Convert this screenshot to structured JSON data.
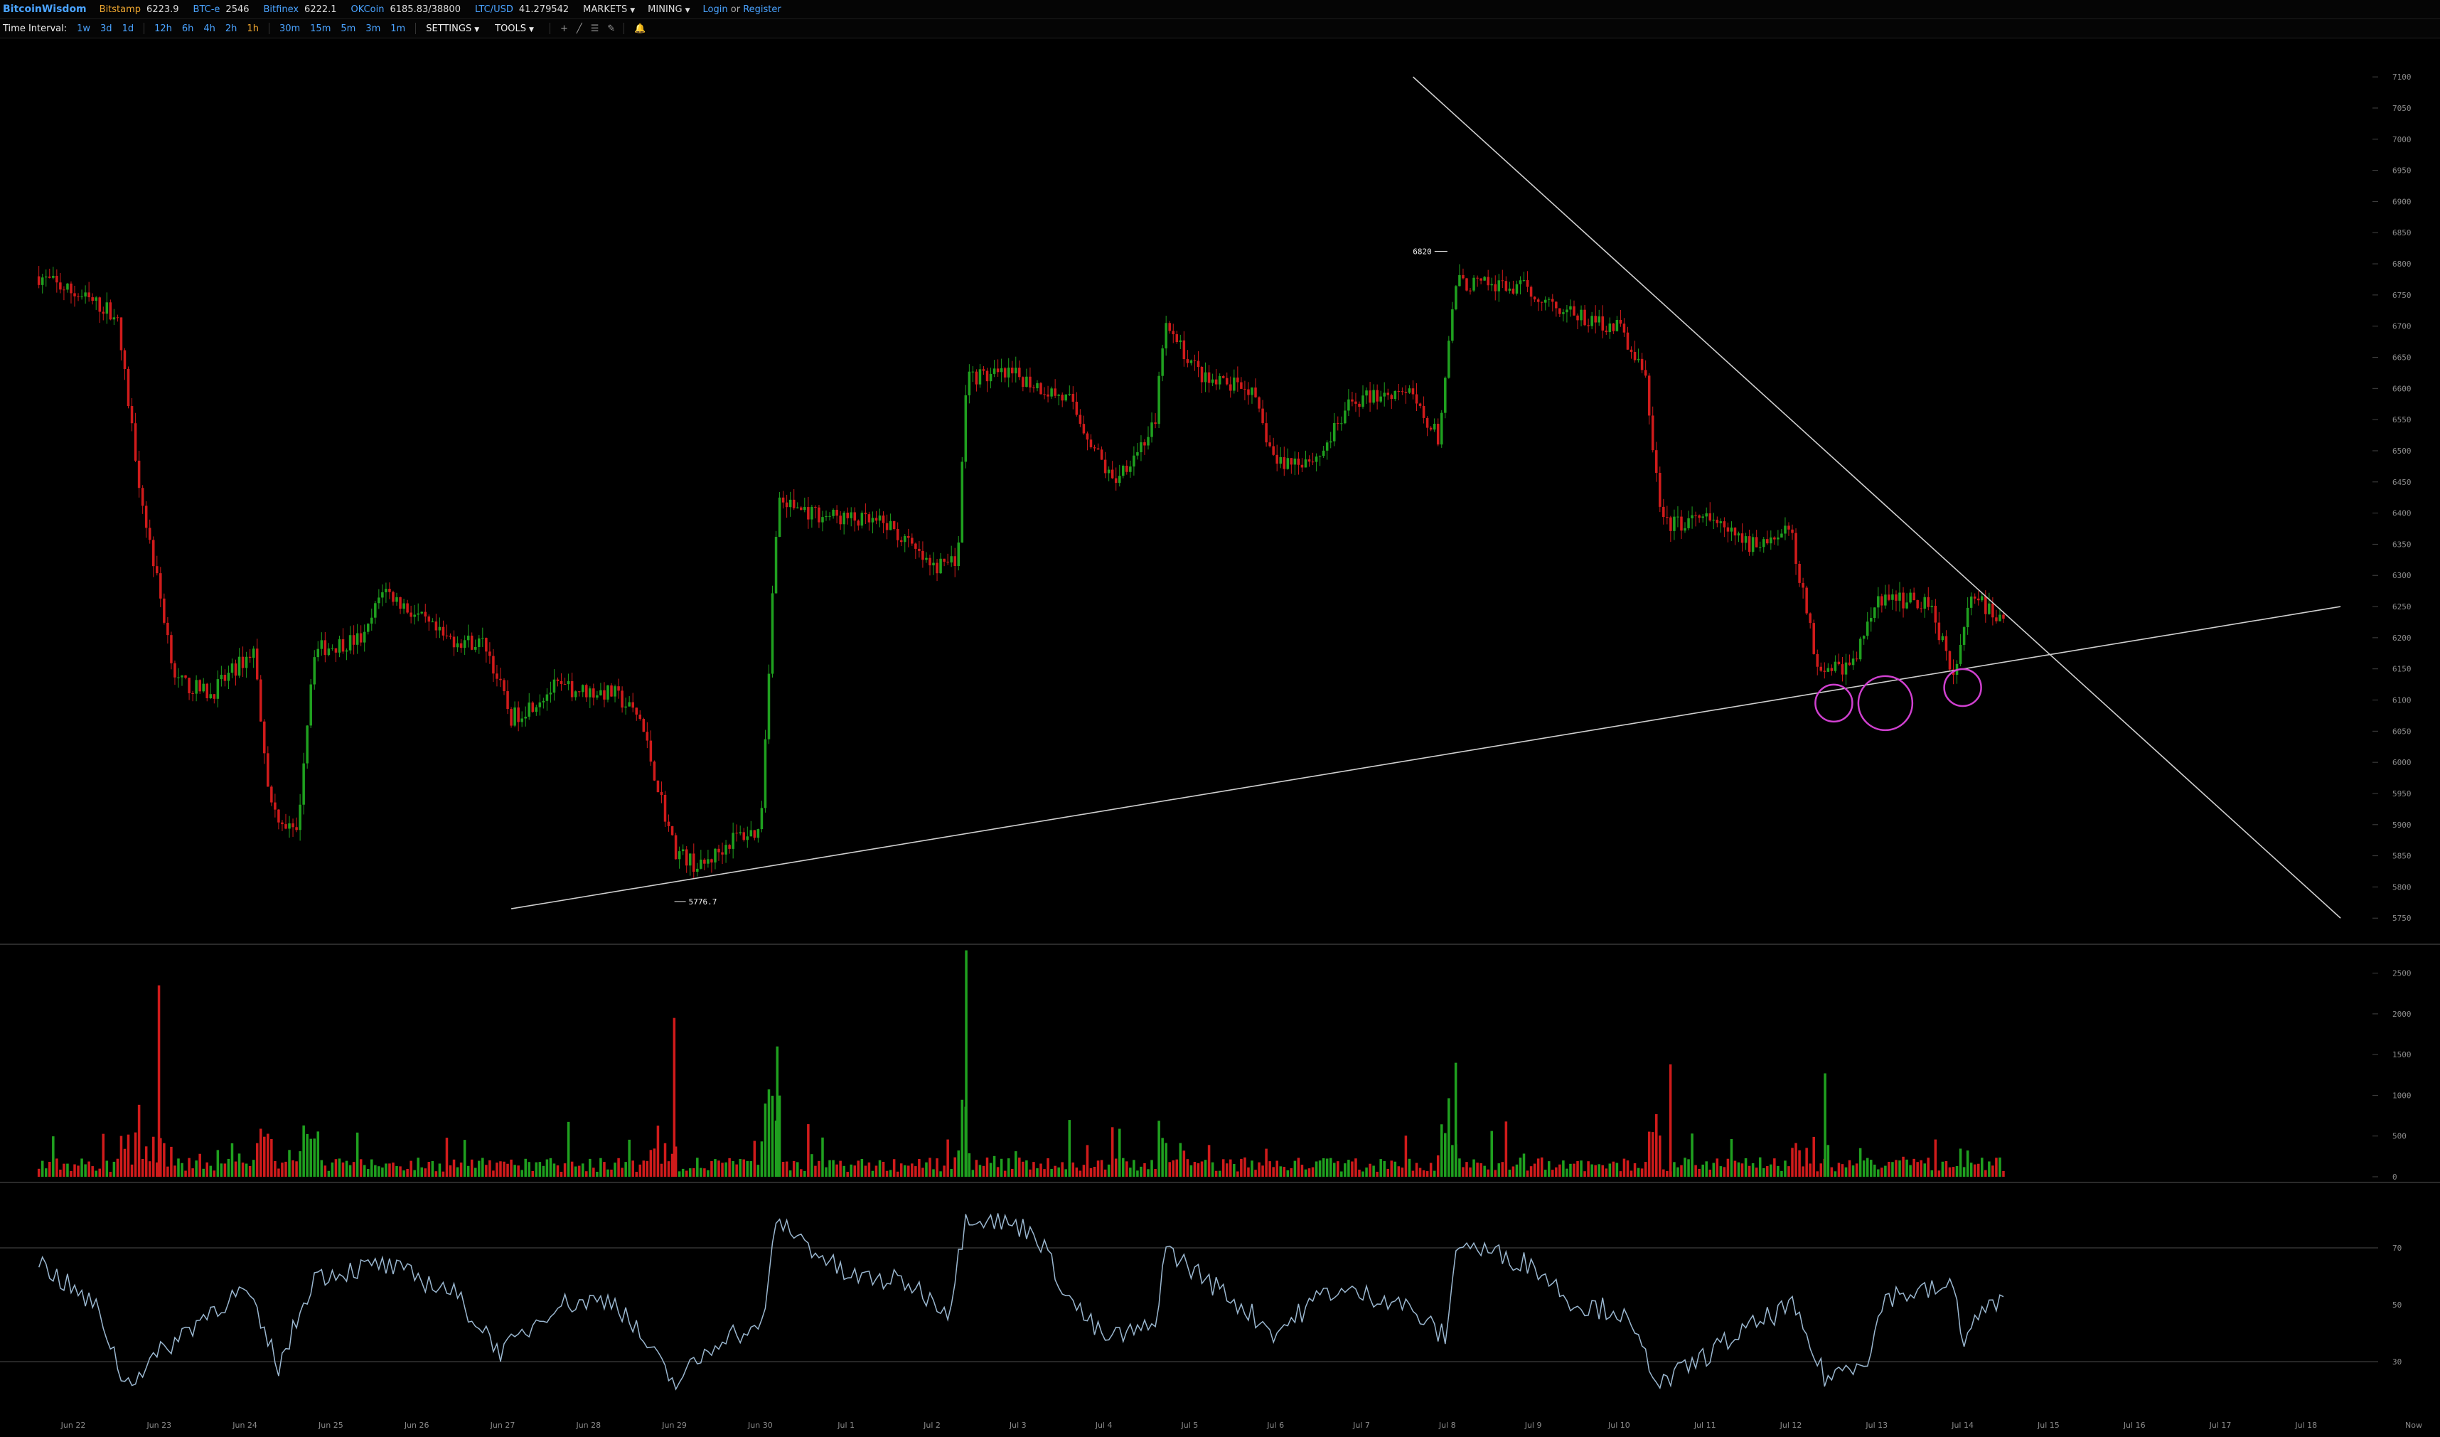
{
  "topbar": {
    "brand": "BitcoinWisdom",
    "exchanges": [
      {
        "name": "Bitstamp",
        "value": "6223.9",
        "color": "#f0a830"
      },
      {
        "name": "BTC-e",
        "value": "2546",
        "color": "#4aa3ff"
      },
      {
        "name": "Bitfinex",
        "value": "6222.1",
        "color": "#4aa3ff"
      },
      {
        "name": "OKCoin",
        "value": "6185.83/38800",
        "color": "#4aa3ff"
      },
      {
        "name": "LTC/USD",
        "value": "41.279542",
        "color": "#4aa3ff"
      }
    ],
    "menus": [
      "MARKETS",
      "MINING"
    ],
    "login": "Login",
    "or": "or",
    "register": "Register"
  },
  "toolbar": {
    "label": "Time Interval:",
    "intervals": [
      "1w",
      "3d",
      "1d",
      "12h",
      "6h",
      "4h",
      "2h",
      "1h",
      "30m",
      "15m",
      "5m",
      "3m",
      "1m"
    ],
    "active_interval": "1h",
    "settings": "SETTINGS",
    "tools": "TOOLS",
    "tool_icons": [
      "crosshair-icon",
      "trendline-icon",
      "horizontal-lines-icon",
      "pen-icon",
      "alarm-icon"
    ]
  },
  "colors": {
    "up": "#1fa01f",
    "down": "#d01b1b",
    "trendline": "#cfcfcf",
    "highlight_circle": "#d040d0",
    "rsi_line": "#9ab7d0",
    "axis_text": "#8a8a8a"
  },
  "chart_data": [
    {
      "type": "candlestick",
      "title": "",
      "price_axis_ticks": [
        5750,
        5800,
        5850,
        5900,
        5950,
        6000,
        6050,
        6100,
        6150,
        6200,
        6250,
        6300,
        6350,
        6400,
        6450,
        6500,
        6550,
        6600,
        6650,
        6700,
        6750,
        6800,
        6850,
        6900,
        6950,
        7000,
        7050,
        7100
      ],
      "ylim": [
        5740,
        7115
      ],
      "date_labels": [
        "Jun 22",
        "Jun 23",
        "Jun 24",
        "Jun 25",
        "Jun 26",
        "Jun 27",
        "Jun 28",
        "Jun 29",
        "Jun 30",
        "Jul 1",
        "Jul 2",
        "Jul 3",
        "Jul 4",
        "Jul 5",
        "Jul 6",
        "Jul 7",
        "Jul 8",
        "Jul 9",
        "Jul 10",
        "Jul 11",
        "Jul 12",
        "Jul 13",
        "Jul 14",
        "Jul 15",
        "Jul 16",
        "Jul 17",
        "Jul 18"
      ],
      "right_corner_label": "Now",
      "high_marker": {
        "label": "6820",
        "date": "Jul 8",
        "price": 6820
      },
      "low_marker": {
        "label": "5776.7",
        "date": "Jun 29",
        "price": 5776.7
      },
      "close_path": [
        {
          "date": "Jun 21.6",
          "close": 6780
        },
        {
          "date": "Jun 22.5",
          "close": 6720
        },
        {
          "date": "Jun 22.8",
          "close": 6420
        },
        {
          "date": "Jun 23.2",
          "close": 6130
        },
        {
          "date": "Jun 23.6",
          "close": 6110
        },
        {
          "date": "Jun 24.1",
          "close": 6180
        },
        {
          "date": "Jun 24.3",
          "close": 5930
        },
        {
          "date": "Jun 24.6",
          "close": 5880
        },
        {
          "date": "Jun 24.8",
          "close": 6180
        },
        {
          "date": "Jun 25.4",
          "close": 6200
        },
        {
          "date": "Jun 25.6",
          "close": 6280
        },
        {
          "date": "Jun 26.3",
          "close": 6200
        },
        {
          "date": "Jun 26.8",
          "close": 6190
        },
        {
          "date": "Jun 27.1",
          "close": 6070
        },
        {
          "date": "Jun 27.6",
          "close": 6120
        },
        {
          "date": "Jun 28.3",
          "close": 6110
        },
        {
          "date": "Jun 28.6",
          "close": 6070
        },
        {
          "date": "Jun 29.0",
          "close": 5860
        },
        {
          "date": "Jun 29.3",
          "close": 5830
        },
        {
          "date": "Jun 29.7",
          "close": 5880
        },
        {
          "date": "Jun 30.0",
          "close": 5890
        },
        {
          "date": "Jun 30.2",
          "close": 6420
        },
        {
          "date": "Jun 30.6",
          "close": 6400
        },
        {
          "date": "Jul 1.5",
          "close": 6380
        },
        {
          "date": "Jul 2.0",
          "close": 6310
        },
        {
          "date": "Jul 2.3",
          "close": 6330
        },
        {
          "date": "Jul 2.4",
          "close": 6620
        },
        {
          "date": "Jul 3.0",
          "close": 6620
        },
        {
          "date": "Jul 3.6",
          "close": 6580
        },
        {
          "date": "Jul 4.1",
          "close": 6450
        },
        {
          "date": "Jul 4.6",
          "close": 6540
        },
        {
          "date": "Jul 4.7",
          "close": 6700
        },
        {
          "date": "Jul 5.2",
          "close": 6610
        },
        {
          "date": "Jul 5.7",
          "close": 6600
        },
        {
          "date": "Jul 6.0",
          "close": 6480
        },
        {
          "date": "Jul 6.5",
          "close": 6490
        },
        {
          "date": "Jul 6.9",
          "close": 6580
        },
        {
          "date": "Jul 7.5",
          "close": 6600
        },
        {
          "date": "Jul 7.9",
          "close": 6520
        },
        {
          "date": "Jul 8.1",
          "close": 6770
        },
        {
          "date": "Jul 8.9",
          "close": 6760
        },
        {
          "date": "Jul 9.6",
          "close": 6710
        },
        {
          "date": "Jul 10.0",
          "close": 6700
        },
        {
          "date": "Jul 10.3",
          "close": 6620
        },
        {
          "date": "Jul 10.5",
          "close": 6380
        },
        {
          "date": "Jul 11.0",
          "close": 6390
        },
        {
          "date": "Jul 11.5",
          "close": 6350
        },
        {
          "date": "Jul 12.0",
          "close": 6370
        },
        {
          "date": "Jul 12.3",
          "close": 6160
        },
        {
          "date": "Jul 12.7",
          "close": 6150
        },
        {
          "date": "Jul 13.0",
          "close": 6260
        },
        {
          "date": "Jul 13.6",
          "close": 6260
        },
        {
          "date": "Jul 13.9",
          "close": 6140
        },
        {
          "date": "Jul 14.1",
          "close": 6270
        },
        {
          "date": "Jul 14.5",
          "close": 6220
        }
      ],
      "trendlines": [
        {
          "name": "descending resistance",
          "from": {
            "date": "Jul 7.6",
            "price": 7100
          },
          "to": {
            "date": "Jul 18.4",
            "price": 5750
          }
        },
        {
          "name": "ascending support",
          "from": {
            "date": "Jun 27.1",
            "price": 5765
          },
          "to": {
            "date": "Jul 18.4",
            "price": 6250
          }
        }
      ],
      "highlight_circles": [
        {
          "date": "Jul 12.5",
          "price": 6095
        },
        {
          "date": "Jul 13.1",
          "price": 6095
        },
        {
          "date": "Jul 14.0",
          "price": 6120
        }
      ]
    },
    {
      "type": "bar",
      "title": "",
      "volume_axis_ticks": [
        0,
        500,
        1000,
        1500,
        2000,
        2500
      ],
      "ylim": [
        0,
        2750
      ],
      "peak_volumes": [
        {
          "date": "Jun 23.0",
          "value": 2350
        },
        {
          "date": "Jun 29.0",
          "value": 1950
        },
        {
          "date": "Jun 30.2",
          "value": 1600
        },
        {
          "date": "Jul 2.4",
          "value": 2780
        },
        {
          "date": "Jul 8.1",
          "value": 1400
        },
        {
          "date": "Jul 10.6",
          "value": 1380
        },
        {
          "date": "Jul 12.4",
          "value": 1270
        }
      ]
    },
    {
      "type": "line",
      "title": "",
      "rsi_axis_ticks": [
        30,
        50,
        70
      ],
      "ylim": [
        10,
        90
      ],
      "path": [
        {
          "date": "Jun 21.6",
          "value": 65
        },
        {
          "date": "Jun 22.3",
          "value": 48
        },
        {
          "date": "Jun 22.6",
          "value": 22
        },
        {
          "date": "Jun 23.2",
          "value": 38
        },
        {
          "date": "Jun 23.6",
          "value": 48
        },
        {
          "date": "Jun 24.0",
          "value": 55
        },
        {
          "date": "Jun 24.4",
          "value": 28
        },
        {
          "date": "Jun 24.8",
          "value": 60
        },
        {
          "date": "Jun 25.6",
          "value": 64
        },
        {
          "date": "Jun 26.4",
          "value": 55
        },
        {
          "date": "Jun 27.0",
          "value": 33
        },
        {
          "date": "Jun 27.6",
          "value": 50
        },
        {
          "date": "Jun 28.3",
          "value": 52
        },
        {
          "date": "Jun 29.0",
          "value": 22
        },
        {
          "date": "Jun 29.6",
          "value": 40
        },
        {
          "date": "Jun 30.0",
          "value": 40
        },
        {
          "date": "Jun 30.2",
          "value": 80
        },
        {
          "date": "Jul 1.0",
          "value": 60
        },
        {
          "date": "Jul 1.7",
          "value": 58
        },
        {
          "date": "Jul 2.2",
          "value": 48
        },
        {
          "date": "Jul 2.4",
          "value": 82
        },
        {
          "date": "Jul 3.2",
          "value": 76
        },
        {
          "date": "Jul 3.6",
          "value": 52
        },
        {
          "date": "Jul 4.0",
          "value": 38
        },
        {
          "date": "Jul 4.6",
          "value": 42
        },
        {
          "date": "Jul 4.7",
          "value": 70
        },
        {
          "date": "Jul 5.5",
          "value": 52
        },
        {
          "date": "Jul 6.0",
          "value": 40
        },
        {
          "date": "Jul 6.6",
          "value": 55
        },
        {
          "date": "Jul 7.4",
          "value": 52
        },
        {
          "date": "Jul 8.0",
          "value": 38
        },
        {
          "date": "Jul 8.1",
          "value": 72
        },
        {
          "date": "Jul 9.0",
          "value": 64
        },
        {
          "date": "Jul 9.5",
          "value": 50
        },
        {
          "date": "Jul 10.0",
          "value": 48
        },
        {
          "date": "Jul 10.5",
          "value": 22
        },
        {
          "date": "Jul 11.3",
          "value": 38
        },
        {
          "date": "Jul 12.0",
          "value": 50
        },
        {
          "date": "Jul 12.4",
          "value": 24
        },
        {
          "date": "Jul 12.9",
          "value": 32
        },
        {
          "date": "Jul 13.1",
          "value": 53
        },
        {
          "date": "Jul 13.9",
          "value": 56
        },
        {
          "date": "Jul 14.0",
          "value": 38
        },
        {
          "date": "Jul 14.3",
          "value": 50
        },
        {
          "date": "Jul 14.5",
          "value": 50
        }
      ]
    }
  ]
}
